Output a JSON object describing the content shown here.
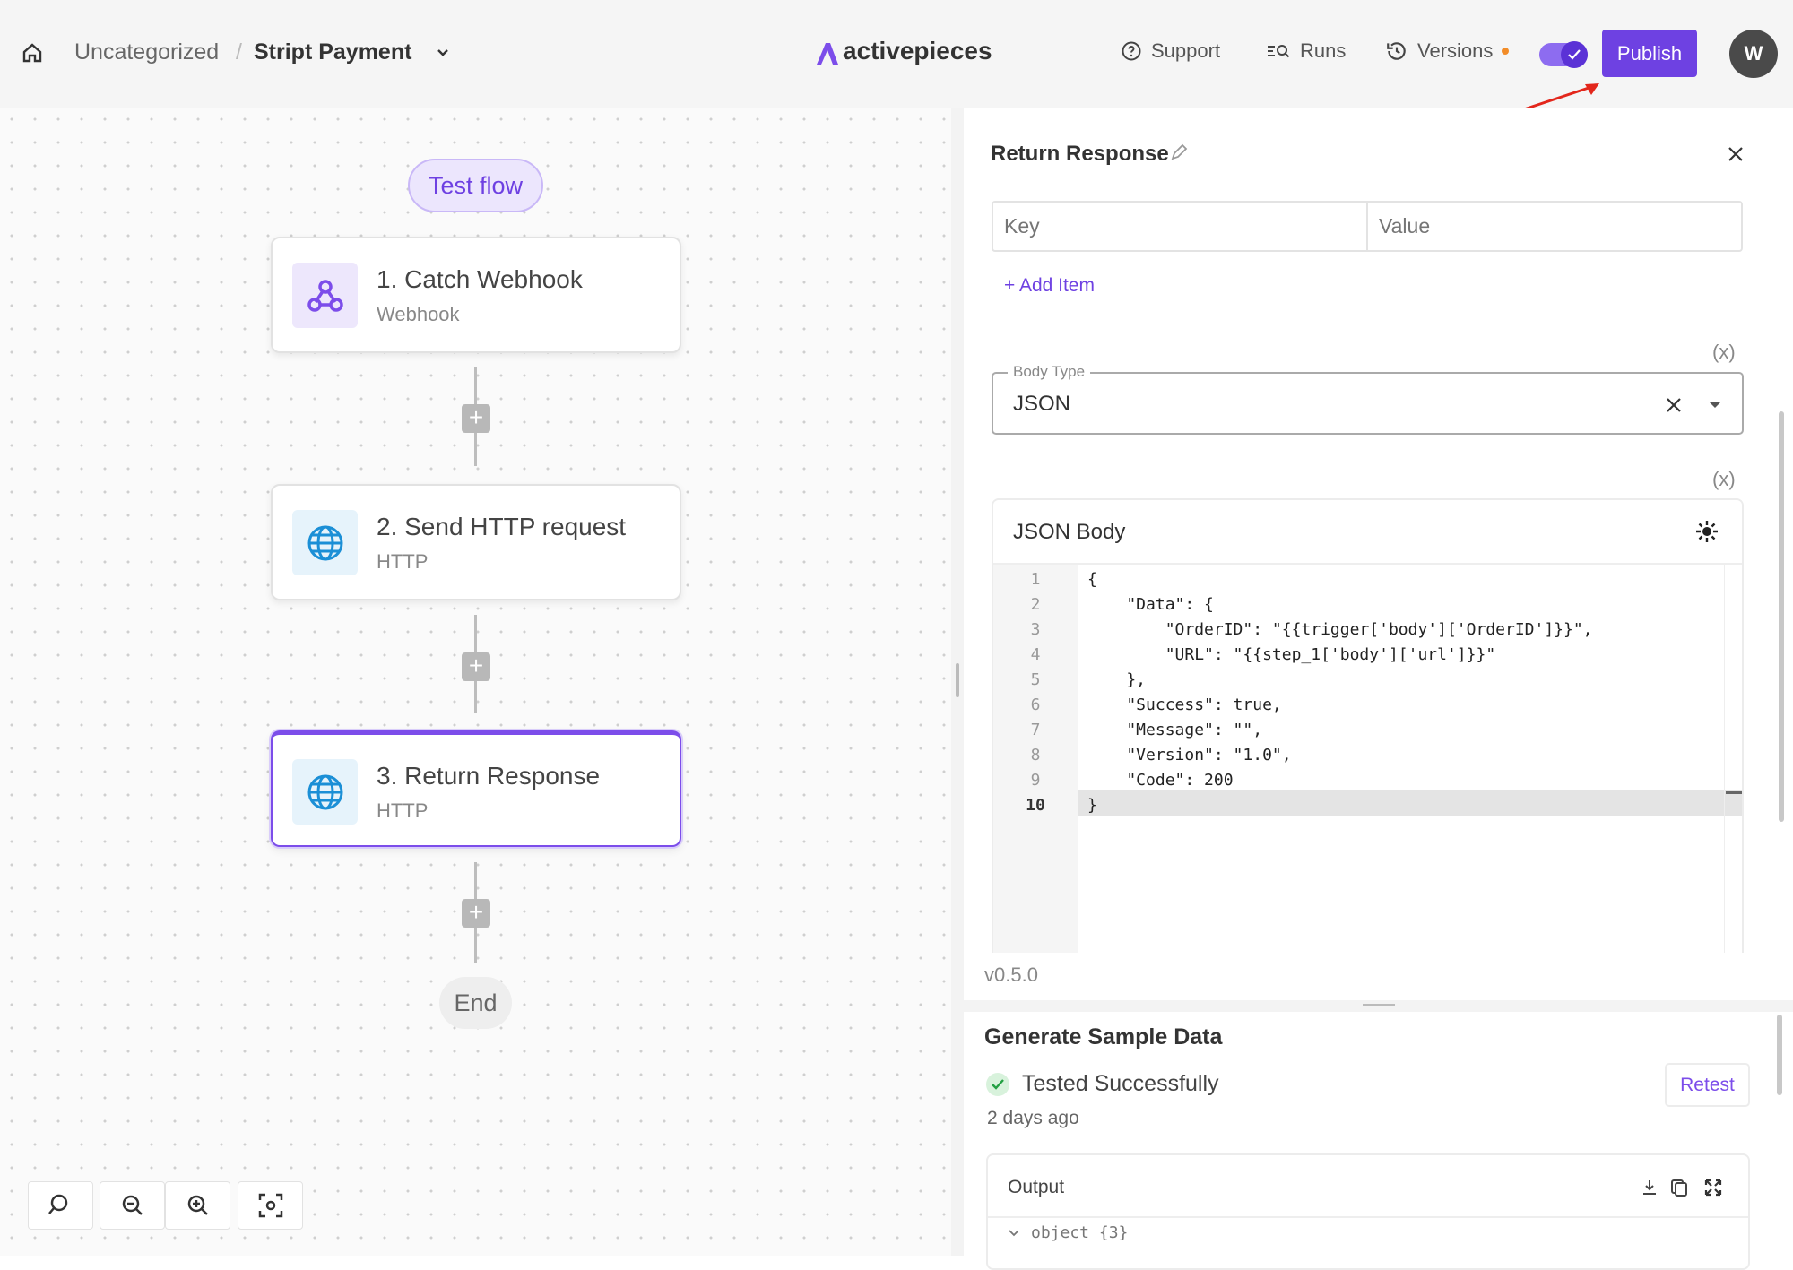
{
  "header": {
    "breadcrumb_folder": "Uncategorized",
    "breadcrumb_sep": "/",
    "flow_name": "Stript Payment",
    "logo": "activepieces",
    "support": "Support",
    "runs": "Runs",
    "versions": "Versions",
    "publish": "Publish",
    "avatar": "W",
    "toggle_on": true,
    "accent": "#6e41e2"
  },
  "canvas": {
    "test_flow": "Test flow",
    "steps": [
      {
        "title": "1. Catch Webhook",
        "subtitle": "Webhook",
        "icon": "webhook-icon"
      },
      {
        "title": "2. Send HTTP request",
        "subtitle": "HTTP",
        "icon": "globe-icon"
      },
      {
        "title": "3. Return Response",
        "subtitle": "HTTP",
        "icon": "globe-icon",
        "selected": true
      }
    ],
    "end": "End"
  },
  "panel": {
    "title": "Return Response",
    "key_placeholder": "Key",
    "value_placeholder": "Value",
    "add_item": "+ Add Item",
    "var_marker": "(x)",
    "body_type_label": "Body Type",
    "body_type_value": "JSON",
    "json_body_title": "JSON Body",
    "code_lines": [
      "{",
      "    \"Data\": {",
      "        \"OrderID\": \"{{trigger['body']['OrderID']}}\",",
      "        \"URL\": \"{{step_1['body']['url']}}\"",
      "    },",
      "    \"Success\": true,",
      "    \"Message\": \"\",",
      "    \"Version\": \"1.0\",",
      "    \"Code\": 200",
      "}"
    ],
    "line_numbers": [
      "1",
      "2",
      "3",
      "4",
      "5",
      "6",
      "7",
      "8",
      "9",
      "10"
    ],
    "active_line": "10",
    "version": "v0.5.0"
  },
  "sample": {
    "title": "Generate Sample Data",
    "status": "Tested Successfully",
    "time": "2 days ago",
    "retest": "Retest",
    "output_label": "Output",
    "output_tree": "object {3}"
  }
}
